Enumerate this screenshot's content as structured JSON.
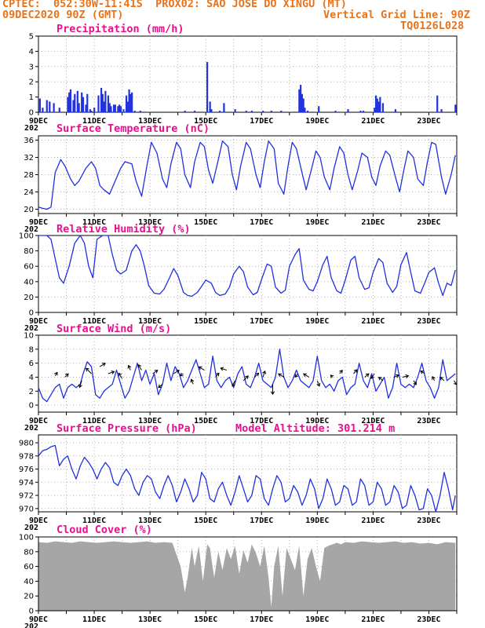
{
  "header": {
    "line1": "CPTEC:  052:30W-11:41S  PROX02: SAO JOSE DO XINGU (MT)",
    "line2_left": "09DEC2020 90Z (GMT)",
    "line2_right": "Vertical Grid Line: 90Z",
    "line3_right": "TQ0126L028"
  },
  "colors": {
    "header": "#e8731a",
    "title": "#e8108f",
    "line": "#2030e0",
    "bar": "#2233dd",
    "cloud": "#a6a6a6",
    "grid": "#b0b0b0"
  },
  "x_tick_labels": [
    "9DEC",
    "11DEC",
    "13DEC",
    "15DEC",
    "17DEC",
    "19DEC",
    "21DEC",
    "23DEC"
  ],
  "x_tick_days": [
    9,
    11,
    13,
    15,
    17,
    19,
    21,
    23
  ],
  "partial_label": "202",
  "chart_data": [
    {
      "id": "precip",
      "type": "bar",
      "title": "Precipitation (mm/h)",
      "xlim": [
        9,
        24
      ],
      "ylim": [
        0,
        5
      ],
      "yticks": [
        0,
        1,
        2,
        3,
        4,
        5
      ],
      "x": [
        9.05,
        9.15,
        9.3,
        9.4,
        9.55,
        9.75,
        10.05,
        10.1,
        10.15,
        10.25,
        10.3,
        10.4,
        10.45,
        10.55,
        10.6,
        10.7,
        10.75,
        10.85,
        10.9,
        11.0,
        11.15,
        11.25,
        11.3,
        11.35,
        11.4,
        11.5,
        11.55,
        11.6,
        11.7,
        11.75,
        11.85,
        11.9,
        11.95,
        12.05,
        12.15,
        12.2,
        12.25,
        12.3,
        12.35,
        12.45,
        12.65,
        14.25,
        14.6,
        15.05,
        15.15,
        15.2,
        15.5,
        15.65,
        16.05,
        16.45,
        16.65,
        17.05,
        17.35,
        17.7,
        18.35,
        18.4,
        18.45,
        18.5,
        18.55,
        18.65,
        19.05,
        19.65,
        20.1,
        20.55,
        20.65,
        21.05,
        21.1,
        21.15,
        21.2,
        21.25,
        21.35,
        21.8,
        23.3,
        23.45,
        23.95
      ],
      "values": [
        0.9,
        0.3,
        0.8,
        0.7,
        0.6,
        0.3,
        1.0,
        1.3,
        1.5,
        0.8,
        1.2,
        1.4,
        0.6,
        1.3,
        1.0,
        0.5,
        1.2,
        0.2,
        0.1,
        0.3,
        1.1,
        1.6,
        1.2,
        0.7,
        1.4,
        1.1,
        0.6,
        0.4,
        0.5,
        0.5,
        0.4,
        0.5,
        0.4,
        0.2,
        1.1,
        0.7,
        1.5,
        1.2,
        1.3,
        0.1,
        0.1,
        0.1,
        0.1,
        3.3,
        0.7,
        0.2,
        0.1,
        0.6,
        0.2,
        0.1,
        0.1,
        0.1,
        0.1,
        0.1,
        1.5,
        1.8,
        1.2,
        0.9,
        0.3,
        0.1,
        0.4,
        0.1,
        0.2,
        0.1,
        0.1,
        0.3,
        1.1,
        0.9,
        0.7,
        1.0,
        0.6,
        0.2,
        1.1,
        0.2,
        0.5
      ]
    },
    {
      "id": "temp",
      "type": "line",
      "title": "Surface Temperature (nC)",
      "xlim": [
        9,
        24
      ],
      "ylim": [
        19,
        37
      ],
      "yticks": [
        20,
        24,
        28,
        32,
        36
      ],
      "x": [
        9.0,
        9.15,
        9.3,
        9.45,
        9.6,
        9.8,
        9.95,
        10.15,
        10.3,
        10.45,
        10.7,
        10.9,
        11.05,
        11.2,
        11.35,
        11.55,
        11.75,
        11.95,
        12.1,
        12.35,
        12.5,
        12.7,
        12.9,
        13.05,
        13.25,
        13.45,
        13.6,
        13.75,
        13.95,
        14.1,
        14.25,
        14.45,
        14.6,
        14.8,
        14.95,
        15.1,
        15.25,
        15.45,
        15.6,
        15.8,
        15.95,
        16.1,
        16.25,
        16.45,
        16.6,
        16.8,
        16.95,
        17.1,
        17.25,
        17.45,
        17.6,
        17.8,
        17.95,
        18.1,
        18.25,
        18.45,
        18.6,
        18.8,
        18.95,
        19.1,
        19.25,
        19.45,
        19.6,
        19.8,
        19.95,
        20.1,
        20.25,
        20.45,
        20.6,
        20.8,
        20.95,
        21.1,
        21.25,
        21.45,
        21.6,
        21.8,
        21.95,
        22.1,
        22.25,
        22.45,
        22.6,
        22.8,
        22.95,
        23.1,
        23.25,
        23.45,
        23.6,
        23.8,
        23.95
      ],
      "values": [
        20.5,
        20.2,
        20.0,
        20.5,
        28.5,
        31.5,
        30.0,
        27.0,
        25.5,
        26.5,
        29.5,
        31.0,
        29.5,
        25.5,
        24.5,
        23.5,
        26.5,
        29.5,
        31.0,
        30.5,
        26.5,
        23.0,
        30.5,
        35.5,
        33.0,
        27.0,
        25.0,
        30.5,
        35.5,
        34.0,
        28.0,
        25.0,
        31.0,
        35.5,
        34.5,
        29.0,
        26.0,
        31.5,
        35.8,
        34.5,
        28.0,
        24.5,
        30.0,
        35.5,
        34.0,
        28.0,
        25.0,
        31.0,
        35.8,
        34.0,
        26.0,
        23.5,
        30.0,
        35.5,
        34.0,
        28.5,
        24.5,
        29.5,
        33.5,
        32.0,
        27.5,
        24.5,
        29.5,
        34.5,
        33.0,
        28.0,
        24.5,
        29.0,
        33.0,
        32.0,
        27.5,
        25.5,
        30.0,
        33.5,
        32.5,
        27.5,
        24.0,
        29.0,
        33.5,
        32.0,
        27.0,
        25.5,
        31.0,
        35.5,
        35.0,
        27.5,
        23.5,
        28.0,
        32.5
      ]
    },
    {
      "id": "rh",
      "type": "line",
      "title": "Relative Humidity (%)",
      "xlim": [
        9,
        24
      ],
      "ylim": [
        0,
        100
      ],
      "yticks": [
        0,
        20,
        40,
        60,
        80,
        100
      ],
      "x": [
        9.0,
        9.15,
        9.3,
        9.45,
        9.6,
        9.75,
        9.9,
        10.1,
        10.3,
        10.5,
        10.65,
        10.8,
        10.95,
        11.1,
        11.3,
        11.5,
        11.65,
        11.8,
        11.95,
        12.15,
        12.35,
        12.5,
        12.65,
        12.8,
        12.95,
        13.15,
        13.35,
        13.5,
        13.7,
        13.85,
        14.0,
        14.2,
        14.35,
        14.5,
        14.7,
        14.85,
        15.0,
        15.2,
        15.35,
        15.5,
        15.7,
        15.85,
        16.0,
        16.2,
        16.35,
        16.5,
        16.7,
        16.85,
        17.0,
        17.2,
        17.35,
        17.5,
        17.7,
        17.85,
        18.0,
        18.2,
        18.35,
        18.5,
        18.7,
        18.85,
        19.0,
        19.2,
        19.35,
        19.5,
        19.7,
        19.85,
        20.0,
        20.2,
        20.35,
        20.5,
        20.7,
        20.85,
        21.0,
        21.2,
        21.35,
        21.5,
        21.7,
        21.85,
        22.0,
        22.2,
        22.35,
        22.5,
        22.7,
        22.85,
        23.0,
        23.2,
        23.35,
        23.5,
        23.65,
        23.8,
        23.95
      ],
      "values": [
        100,
        100,
        100,
        95,
        70,
        45,
        38,
        60,
        90,
        100,
        90,
        60,
        45,
        95,
        100,
        100,
        75,
        55,
        50,
        55,
        80,
        88,
        80,
        60,
        35,
        25,
        24,
        30,
        45,
        57,
        48,
        26,
        22,
        21,
        26,
        34,
        42,
        38,
        26,
        22,
        24,
        33,
        50,
        60,
        53,
        33,
        23,
        26,
        43,
        63,
        60,
        33,
        25,
        29,
        60,
        75,
        83,
        42,
        30,
        28,
        40,
        62,
        73,
        45,
        28,
        25,
        42,
        68,
        73,
        45,
        30,
        32,
        52,
        70,
        65,
        38,
        26,
        34,
        62,
        78,
        52,
        28,
        25,
        38,
        52,
        58,
        38,
        22,
        38,
        35,
        55
      ]
    },
    {
      "id": "wind",
      "type": "line",
      "title": "Surface Wind (m/s)",
      "xlim": [
        9,
        24
      ],
      "ylim": [
        -1,
        10
      ],
      "yticks": [
        0,
        2,
        4,
        6,
        8,
        10
      ],
      "x": [
        9.0,
        9.15,
        9.3,
        9.45,
        9.6,
        9.75,
        9.9,
        10.05,
        10.2,
        10.35,
        10.5,
        10.6,
        10.75,
        10.9,
        11.05,
        11.2,
        11.35,
        11.5,
        11.65,
        11.8,
        11.95,
        12.1,
        12.25,
        12.4,
        12.55,
        12.7,
        12.85,
        13.0,
        13.15,
        13.3,
        13.45,
        13.6,
        13.75,
        13.9,
        14.05,
        14.2,
        14.35,
        14.5,
        14.65,
        14.8,
        14.95,
        15.1,
        15.25,
        15.4,
        15.55,
        15.7,
        15.85,
        16.0,
        16.15,
        16.3,
        16.45,
        16.6,
        16.75,
        16.9,
        17.05,
        17.2,
        17.35,
        17.5,
        17.65,
        17.8,
        17.95,
        18.1,
        18.25,
        18.4,
        18.55,
        18.7,
        18.85,
        19.0,
        19.15,
        19.3,
        19.45,
        19.6,
        19.75,
        19.9,
        20.05,
        20.2,
        20.35,
        20.5,
        20.65,
        20.8,
        20.95,
        21.1,
        21.25,
        21.4,
        21.55,
        21.7,
        21.85,
        22.0,
        22.15,
        22.3,
        22.45,
        22.6,
        22.75,
        22.9,
        23.05,
        23.2,
        23.35,
        23.5,
        23.65,
        23.8,
        23.95
      ],
      "values": [
        2.5,
        1.0,
        0.5,
        1.5,
        2.5,
        3.0,
        1.0,
        2.5,
        3.0,
        2.5,
        3.0,
        4.5,
        6.2,
        5.5,
        1.5,
        1.0,
        2.0,
        2.5,
        3.0,
        5.0,
        3.0,
        1.0,
        2.0,
        4.0,
        6.0,
        3.5,
        5.0,
        3.0,
        4.5,
        1.5,
        3.0,
        6.0,
        3.5,
        5.5,
        4.5,
        2.5,
        3.5,
        5.0,
        6.5,
        4.5,
        2.5,
        3.0,
        7.0,
        3.5,
        2.5,
        3.5,
        4.0,
        2.5,
        4.5,
        5.5,
        3.0,
        2.5,
        4.0,
        6.0,
        3.5,
        3.0,
        2.5,
        4.0,
        8.0,
        4.0,
        2.5,
        3.5,
        5.0,
        3.5,
        3.0,
        2.5,
        3.5,
        7.0,
        3.5,
        2.5,
        3.0,
        2.0,
        3.5,
        4.0,
        1.5,
        2.5,
        3.0,
        6.0,
        3.5,
        2.5,
        4.5,
        2.0,
        3.0,
        4.0,
        1.0,
        2.5,
        6.0,
        3.0,
        2.5,
        3.0,
        2.5,
        4.0,
        6.0,
        3.5,
        2.5,
        1.0,
        2.5,
        6.5,
        3.5,
        4.0,
        4.5
      ],
      "vectors": {
        "x": [
          9.6,
          9.95,
          10.55,
          10.9,
          11.2,
          11.5,
          12.0,
          12.3,
          12.7,
          13.1,
          13.45,
          13.85,
          14.2,
          14.55,
          14.95,
          15.35,
          15.75,
          16.05,
          16.35,
          16.75,
          17.05,
          17.4,
          17.8,
          18.3,
          18.7,
          19.0,
          19.55,
          19.8,
          20.3,
          20.7,
          21.05,
          21.35,
          21.75,
          22.05,
          22.45,
          22.85,
          23.2,
          23.55,
          23.9
        ],
        "y": [
          4.2,
          4.0,
          3.5,
          4.5,
          5.5,
          4.5,
          3.8,
          5.0,
          5.0,
          4.5,
          3.0,
          4.5,
          4.5,
          3.0,
          5.0,
          4.0,
          5.0,
          3.5,
          3.5,
          4.0,
          4.0,
          3.0,
          4.0,
          4.5,
          4.0,
          3.5,
          4.0,
          4.5,
          4.5,
          4.0,
          4.5,
          3.5,
          4.0,
          4.0,
          3.5,
          4.5,
          3.5,
          3.5,
          3.5
        ],
        "u": [
          0.3,
          0.5,
          -0.3,
          -0.8,
          0.8,
          0.9,
          -0.5,
          -0.3,
          -0.5,
          0.7,
          -0.6,
          0.8,
          -0.5,
          -0.3,
          -0.8,
          0.5,
          -0.9,
          -0.4,
          0.7,
          0.6,
          0.3,
          0.0,
          -0.8,
          -0.4,
          -0.8,
          0.3,
          -0.3,
          0.4,
          0.5,
          0.6,
          -0.5,
          -0.6,
          0.7,
          0.9,
          0.4,
          -0.6,
          -0.3,
          -0.6,
          0.4
        ],
        "v": [
          0.5,
          0.5,
          -1.0,
          0.8,
          0.5,
          0.3,
          0.8,
          0.7,
          0.8,
          0.5,
          -0.5,
          0.5,
          -0.3,
          0.7,
          0.5,
          0.6,
          0.3,
          -0.8,
          0.7,
          0.6,
          0.9,
          -1.5,
          0.5,
          -0.5,
          0.5,
          -0.8,
          0.3,
          0.5,
          0.6,
          0.5,
          -0.7,
          0.5,
          0.3,
          0.2,
          -0.6,
          0.4,
          0.6,
          0.5,
          -0.6
        ]
      }
    },
    {
      "id": "pres",
      "type": "line",
      "title": "Surface Pressure (hPa)",
      "annotation": "Model Altitude: 301.214 m",
      "xlim": [
        9,
        24
      ],
      "ylim": [
        969.5,
        981.2
      ],
      "yticks": [
        970,
        972,
        974,
        976,
        978,
        980
      ],
      "x": [
        9.0,
        9.15,
        9.3,
        9.45,
        9.6,
        9.75,
        9.9,
        10.05,
        10.2,
        10.35,
        10.5,
        10.65,
        10.8,
        10.95,
        11.1,
        11.25,
        11.4,
        11.55,
        11.7,
        11.85,
        12.0,
        12.15,
        12.3,
        12.45,
        12.6,
        12.75,
        12.9,
        13.05,
        13.2,
        13.35,
        13.5,
        13.65,
        13.8,
        13.95,
        14.1,
        14.25,
        14.4,
        14.55,
        14.7,
        14.85,
        15.0,
        15.15,
        15.3,
        15.45,
        15.6,
        15.75,
        15.9,
        16.05,
        16.2,
        16.35,
        16.5,
        16.65,
        16.8,
        16.95,
        17.1,
        17.25,
        17.4,
        17.55,
        17.7,
        17.85,
        18.0,
        18.15,
        18.3,
        18.45,
        18.6,
        18.75,
        18.9,
        19.05,
        19.2,
        19.35,
        19.5,
        19.65,
        19.8,
        19.95,
        20.1,
        20.25,
        20.4,
        20.55,
        20.7,
        20.85,
        21.0,
        21.15,
        21.3,
        21.45,
        21.6,
        21.75,
        21.9,
        22.05,
        22.2,
        22.35,
        22.5,
        22.65,
        22.8,
        22.95,
        23.1,
        23.25,
        23.4,
        23.55,
        23.7,
        23.85,
        23.95
      ],
      "values": [
        978.0,
        978.8,
        979.0,
        979.4,
        979.6,
        976.5,
        977.5,
        978.0,
        976.0,
        974.5,
        976.5,
        977.8,
        977.0,
        976.0,
        974.5,
        976.0,
        977.0,
        976.2,
        974.0,
        973.5,
        975.0,
        976.0,
        975.0,
        973.0,
        972.0,
        974.0,
        975.0,
        974.5,
        972.5,
        971.5,
        973.5,
        975.0,
        973.5,
        971.0,
        972.5,
        974.5,
        973.0,
        971.0,
        972.0,
        975.5,
        974.5,
        971.5,
        971.0,
        973.0,
        974.0,
        972.0,
        970.5,
        972.5,
        975.0,
        973.0,
        971.0,
        972.0,
        975.0,
        974.5,
        971.5,
        970.5,
        973.0,
        975.0,
        974.0,
        971.0,
        971.5,
        973.5,
        972.5,
        970.5,
        972.0,
        974.5,
        973.0,
        970.0,
        971.5,
        974.5,
        973.0,
        970.5,
        971.0,
        973.5,
        973.0,
        970.5,
        971.0,
        974.5,
        973.5,
        970.5,
        971.0,
        974.0,
        973.0,
        970.5,
        971.0,
        973.5,
        972.5,
        970.0,
        970.5,
        973.5,
        972.0,
        969.8,
        970.0,
        973.0,
        972.0,
        969.5,
        972.0,
        975.5,
        973.0,
        969.8,
        972.0
      ]
    },
    {
      "id": "cloud",
      "type": "area",
      "title": "Cloud Cover (%)",
      "xlim": [
        9,
        24
      ],
      "ylim": [
        0,
        100
      ],
      "yticks": [
        0,
        20,
        40,
        60,
        80,
        100
      ],
      "x": [
        9.0,
        9.3,
        9.6,
        9.9,
        10.2,
        10.5,
        10.8,
        11.1,
        11.4,
        11.7,
        12.0,
        12.3,
        12.6,
        12.9,
        13.2,
        13.5,
        13.8,
        14.1,
        14.25,
        14.35,
        14.5,
        14.6,
        14.75,
        14.9,
        15.05,
        15.15,
        15.3,
        15.45,
        15.6,
        15.75,
        15.9,
        16.05,
        16.2,
        16.35,
        16.5,
        16.65,
        16.8,
        16.95,
        17.1,
        17.25,
        17.35,
        17.45,
        17.6,
        17.75,
        17.9,
        18.05,
        18.2,
        18.35,
        18.5,
        18.65,
        18.8,
        18.95,
        19.1,
        19.25,
        19.4,
        19.55,
        19.7,
        19.85,
        20.0,
        20.3,
        20.6,
        20.9,
        21.2,
        21.5,
        21.8,
        22.1,
        22.4,
        22.7,
        23.0,
        23.3,
        23.6,
        23.95
      ],
      "values": [
        93,
        92,
        94,
        93,
        92,
        94,
        93,
        92,
        93,
        94,
        93,
        92,
        93,
        94,
        92,
        93,
        92,
        60,
        25,
        45,
        85,
        60,
        88,
        40,
        90,
        85,
        45,
        80,
        55,
        85,
        70,
        88,
        50,
        82,
        65,
        90,
        78,
        60,
        88,
        45,
        5,
        60,
        88,
        20,
        85,
        70,
        55,
        88,
        20,
        70,
        85,
        60,
        40,
        85,
        88,
        90,
        92,
        90,
        93,
        92,
        94,
        93,
        92,
        93,
        94,
        92,
        93,
        91,
        92,
        90,
        93,
        92
      ]
    }
  ]
}
